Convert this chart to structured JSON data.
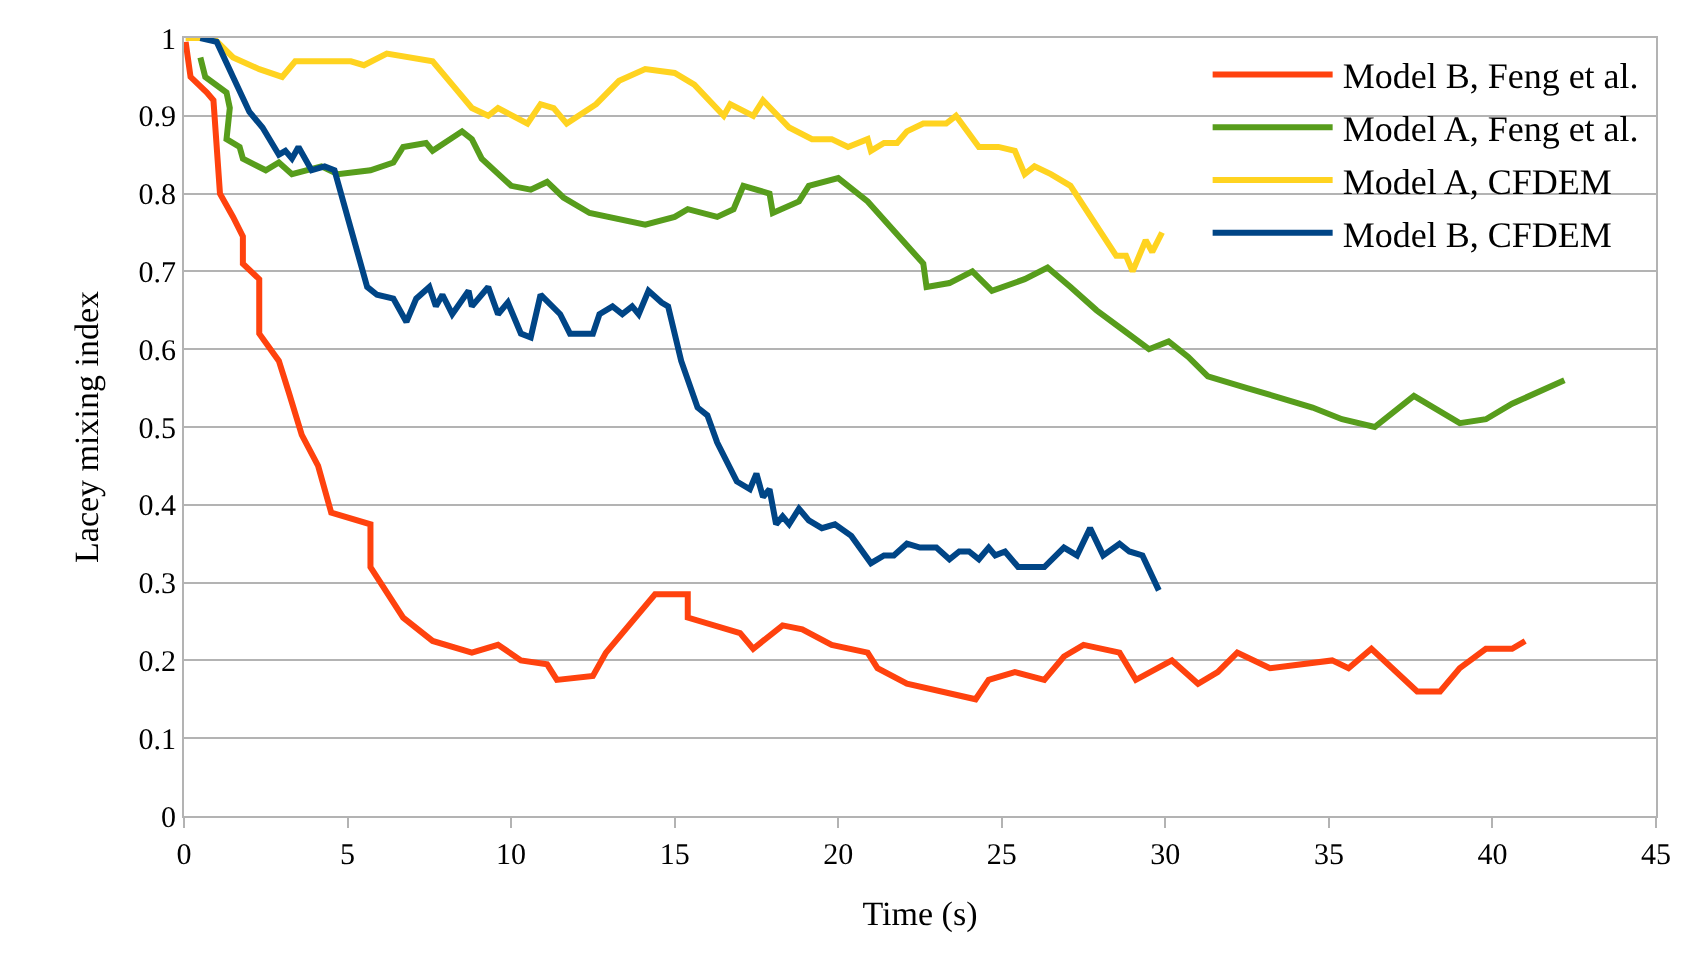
{
  "chart_data": {
    "type": "line",
    "xlabel": "Time (s)",
    "ylabel": "Lacey mixing index",
    "xlim": [
      0,
      45
    ],
    "xticks": [
      0,
      5,
      10,
      15,
      20,
      25,
      30,
      35,
      40,
      45
    ],
    "ylim": [
      0,
      1
    ],
    "yticks": [
      0,
      0.1,
      0.2,
      0.3,
      0.4,
      0.5,
      0.6,
      0.7,
      0.8,
      0.9,
      1
    ],
    "grid": "y",
    "legend": "top right",
    "marker": "none",
    "line_style": "solid",
    "series": [
      {
        "name": "Model B, Feng et al.",
        "color": "#ff420e",
        "x": [
          0.05,
          0.2,
          0.7,
          0.9,
          1.1,
          1.5,
          1.8,
          1.8,
          2.3,
          2.3,
          2.9,
          3.2,
          3.6,
          4.1,
          4.5,
          5.7,
          5.7,
          6.7,
          7.6,
          8.8,
          9.6,
          10.3,
          11.1,
          11.4,
          12.5,
          12.9,
          14.4,
          15.4,
          15.4,
          17.0,
          17.4,
          18.3,
          18.9,
          19.8,
          20.9,
          21.2,
          22.1,
          24.2,
          24.6,
          25.4,
          26.3,
          26.9,
          27.5,
          28.6,
          29.1,
          30.2,
          31.0,
          31.6,
          32.2,
          33.2,
          35.1,
          35.6,
          36.3,
          37.7,
          38.4,
          39.0,
          39.8,
          40.6,
          41.0
        ],
        "values": [
          0.995,
          0.95,
          0.93,
          0.92,
          0.8,
          0.77,
          0.745,
          0.71,
          0.69,
          0.62,
          0.585,
          0.545,
          0.49,
          0.45,
          0.39,
          0.375,
          0.32,
          0.255,
          0.225,
          0.21,
          0.22,
          0.2,
          0.195,
          0.175,
          0.18,
          0.21,
          0.285,
          0.285,
          0.255,
          0.235,
          0.215,
          0.245,
          0.24,
          0.22,
          0.21,
          0.19,
          0.17,
          0.15,
          0.175,
          0.185,
          0.175,
          0.205,
          0.22,
          0.21,
          0.175,
          0.2,
          0.17,
          0.185,
          0.21,
          0.19,
          0.2,
          0.19,
          0.215,
          0.16,
          0.16,
          0.19,
          0.215,
          0.215,
          0.225
        ]
      },
      {
        "name": "Model A, Feng et al.",
        "color": "#579d1c",
        "x": [
          0.5,
          0.65,
          1.3,
          1.4,
          1.3,
          1.7,
          1.8,
          2.5,
          2.9,
          3.3,
          4.2,
          4.7,
          5.7,
          6.4,
          6.7,
          7.4,
          7.6,
          8.5,
          8.8,
          9.1,
          10.0,
          10.6,
          11.1,
          11.6,
          12.4,
          14.1,
          15.0,
          15.4,
          16.3,
          16.8,
          17.1,
          17.9,
          18.0,
          18.8,
          19.1,
          20.0,
          20.9,
          22.6,
          22.7,
          23.4,
          24.1,
          24.7,
          25.7,
          26.4,
          27.1,
          27.9,
          28.7,
          29.5,
          30.1,
          30.7,
          31.3,
          32.5,
          34.5,
          35.4,
          36.4,
          37.6,
          39.0,
          39.8,
          40.6,
          42.2
        ],
        "values": [
          0.975,
          0.95,
          0.93,
          0.91,
          0.87,
          0.86,
          0.845,
          0.83,
          0.84,
          0.825,
          0.835,
          0.825,
          0.83,
          0.84,
          0.86,
          0.865,
          0.855,
          0.88,
          0.87,
          0.845,
          0.81,
          0.805,
          0.815,
          0.795,
          0.775,
          0.76,
          0.77,
          0.78,
          0.77,
          0.78,
          0.81,
          0.8,
          0.775,
          0.79,
          0.81,
          0.82,
          0.79,
          0.71,
          0.68,
          0.685,
          0.7,
          0.675,
          0.69,
          0.705,
          0.68,
          0.65,
          0.625,
          0.6,
          0.61,
          0.59,
          0.565,
          0.55,
          0.525,
          0.51,
          0.5,
          0.54,
          0.505,
          0.51,
          0.53,
          0.56
        ]
      },
      {
        "name": "Model A, CFDEM",
        "color": "#ffd320",
        "x": [
          0.05,
          0.9,
          1.5,
          2.3,
          3.0,
          3.4,
          3.9,
          5.1,
          5.5,
          6.2,
          7.6,
          8.2,
          8.8,
          9.3,
          9.6,
          10.5,
          10.9,
          11.3,
          11.7,
          12.6,
          13.3,
          14.1,
          15.0,
          15.6,
          16.5,
          16.7,
          17.4,
          17.7,
          18.5,
          19.2,
          19.8,
          20.3,
          20.9,
          21.0,
          21.4,
          21.8,
          22.1,
          22.6,
          23.3,
          23.6,
          24.3,
          24.9,
          25.4,
          25.7,
          26.0,
          26.5,
          27.1,
          27.8,
          28.5,
          28.8,
          29.0,
          29.4,
          29.6,
          29.9
        ],
        "values": [
          1.0,
          1.0,
          0.975,
          0.96,
          0.95,
          0.97,
          0.97,
          0.97,
          0.965,
          0.98,
          0.97,
          0.94,
          0.91,
          0.9,
          0.91,
          0.89,
          0.915,
          0.91,
          0.89,
          0.915,
          0.945,
          0.96,
          0.955,
          0.94,
          0.9,
          0.915,
          0.9,
          0.92,
          0.885,
          0.87,
          0.87,
          0.86,
          0.87,
          0.855,
          0.865,
          0.865,
          0.88,
          0.89,
          0.89,
          0.9,
          0.86,
          0.86,
          0.855,
          0.825,
          0.835,
          0.825,
          0.81,
          0.765,
          0.72,
          0.72,
          0.7,
          0.74,
          0.725,
          0.75
        ]
      },
      {
        "name": "Model B, CFDEM",
        "color": "#004586",
        "x": [
          0.5,
          1.0,
          1.5,
          2.0,
          2.4,
          2.9,
          3.1,
          3.3,
          3.5,
          3.9,
          4.3,
          4.6,
          5.1,
          5.6,
          5.9,
          6.4,
          6.8,
          7.1,
          7.5,
          7.7,
          7.9,
          8.2,
          8.7,
          8.8,
          9.3,
          9.6,
          9.9,
          10.3,
          10.6,
          10.9,
          11.5,
          11.8,
          12.5,
          12.7,
          13.1,
          13.4,
          13.7,
          13.9,
          14.2,
          14.6,
          14.8,
          15.2,
          15.7,
          16.0,
          16.3,
          16.9,
          17.3,
          17.5,
          17.7,
          17.9,
          18.1,
          18.3,
          18.5,
          18.8,
          19.1,
          19.5,
          19.9,
          20.4,
          21.0,
          21.4,
          21.7,
          22.1,
          22.5,
          23.0,
          23.4,
          23.7,
          24.0,
          24.3,
          24.6,
          24.8,
          25.1,
          25.5,
          26.0,
          26.3,
          26.9,
          27.3,
          27.7,
          28.1,
          28.6,
          28.9,
          29.3,
          29.8
        ],
        "values": [
          1.0,
          0.995,
          0.95,
          0.905,
          0.885,
          0.85,
          0.855,
          0.845,
          0.86,
          0.83,
          0.835,
          0.83,
          0.755,
          0.68,
          0.67,
          0.665,
          0.635,
          0.665,
          0.68,
          0.655,
          0.67,
          0.645,
          0.675,
          0.655,
          0.68,
          0.645,
          0.66,
          0.62,
          0.615,
          0.67,
          0.645,
          0.62,
          0.62,
          0.645,
          0.655,
          0.645,
          0.655,
          0.645,
          0.675,
          0.66,
          0.655,
          0.585,
          0.525,
          0.515,
          0.48,
          0.43,
          0.42,
          0.44,
          0.41,
          0.42,
          0.375,
          0.385,
          0.375,
          0.395,
          0.38,
          0.37,
          0.375,
          0.36,
          0.325,
          0.335,
          0.335,
          0.35,
          0.345,
          0.345,
          0.33,
          0.34,
          0.34,
          0.33,
          0.345,
          0.335,
          0.34,
          0.32,
          0.32,
          0.32,
          0.345,
          0.335,
          0.37,
          0.335,
          0.35,
          0.34,
          0.335,
          0.29
        ]
      }
    ]
  }
}
